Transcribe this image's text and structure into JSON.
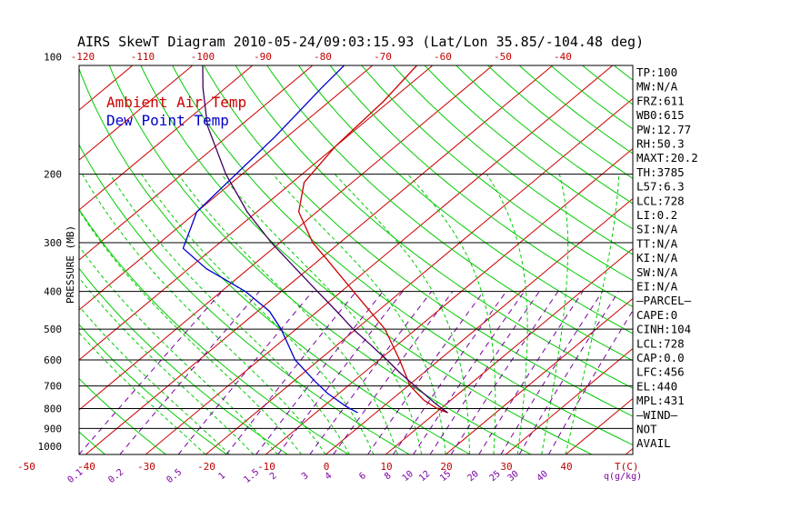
{
  "title": "AIRS SkewT Diagram 2010-05-24/09:03:15.93 (Lat/Lon 35.85/-104.48 deg)",
  "colors": {
    "background": "#ffffff",
    "isotherm": "#cc0000",
    "dry_adiabat": "#00cc00",
    "moist_adiabat": "#00cc00",
    "mixing_ratio": "#7a00a0",
    "temperature": "#cc0000",
    "dewpoint": "#0000cc",
    "parcel": "#400060",
    "isobar": "#000000"
  },
  "legend": [
    {
      "label": "Ambient Air Temp",
      "color": "#cc0000"
    },
    {
      "label": "Dew Point Temp",
      "color": "#0000cc"
    }
  ],
  "chart_data": {
    "type": "line",
    "ylabel": "PRESSURE (MB)",
    "xlabel": "T(C)",
    "mixing_ratio_unit": "q(g/kg)",
    "pressure_levels": [
      100,
      200,
      300,
      400,
      500,
      600,
      700,
      800,
      900,
      1000
    ],
    "top_temp_ticks": [
      -120,
      -110,
      -100,
      -90,
      -80,
      -70,
      -60,
      -50,
      -40
    ],
    "bottom_temp_ticks": [
      -50,
      -40,
      -30,
      -20,
      -10,
      0,
      10,
      20,
      30,
      40
    ],
    "mixing_ratio_ticks": [
      "0.1",
      "0.2",
      "0.5",
      "1",
      "1.5",
      "2",
      "3",
      "4",
      "6",
      "8",
      "10",
      "12",
      "15",
      "20",
      "25",
      "30",
      "40"
    ],
    "series": [
      {
        "name": "Ambient Air Temp",
        "pressure": [
          820,
          800,
          760,
          700,
          600,
          500,
          400,
          330,
          300,
          250,
          210,
          170,
          130,
          100
        ],
        "temperature": [
          12.0,
          9.4,
          5.4,
          0.4,
          -6.6,
          -15.2,
          -28.0,
          -39.0,
          -44.5,
          -53.0,
          -58.0,
          -60.0,
          -61.0,
          -63.0
        ]
      },
      {
        "name": "Dew Point Temp",
        "pressure": [
          820,
          790,
          730,
          680,
          600,
          500,
          450,
          400,
          350,
          310,
          250,
          200,
          160,
          120,
          100
        ],
        "temperature": [
          -3.0,
          -6.2,
          -12.0,
          -16.5,
          -24.0,
          -32.5,
          -38.0,
          -46.0,
          -57.0,
          -65.0,
          -70.0,
          -71.0,
          -72.0,
          -74.0,
          -75.0
        ]
      },
      {
        "pressure": [
          820,
          780,
          740,
          700,
          650,
          600,
          550,
          500,
          450,
          400,
          350,
          300,
          250,
          200,
          150,
          120,
          100
        ],
        "temperature": [
          12.0,
          8.4,
          4.9,
          1.2,
          -3.7,
          -8.7,
          -14.3,
          -20.5,
          -26.8,
          -34.0,
          -42.1,
          -51.4,
          -61.6,
          -72.7,
          -85.5,
          -93.8,
          -100.0
        ]
      }
    ],
    "indices": [
      "TP:100",
      "MW:N/A",
      "FRZ:611",
      "WB0:615",
      "PW:12.77",
      "RH:50.3",
      "MAXT:20.2",
      "TH:3785",
      "L57:6.3",
      "LCL:728",
      "LI:0.2",
      "SI:N/A",
      "TT:N/A",
      "KI:N/A",
      "SW:N/A",
      "EI:N/A",
      "—PARCEL—",
      "CAPE:0",
      "CINH:104",
      "LCL:728",
      "CAP:0.0",
      "LFC:456",
      "EL:440",
      "MPL:431",
      "—WIND—",
      "NOT",
      "AVAIL"
    ]
  }
}
